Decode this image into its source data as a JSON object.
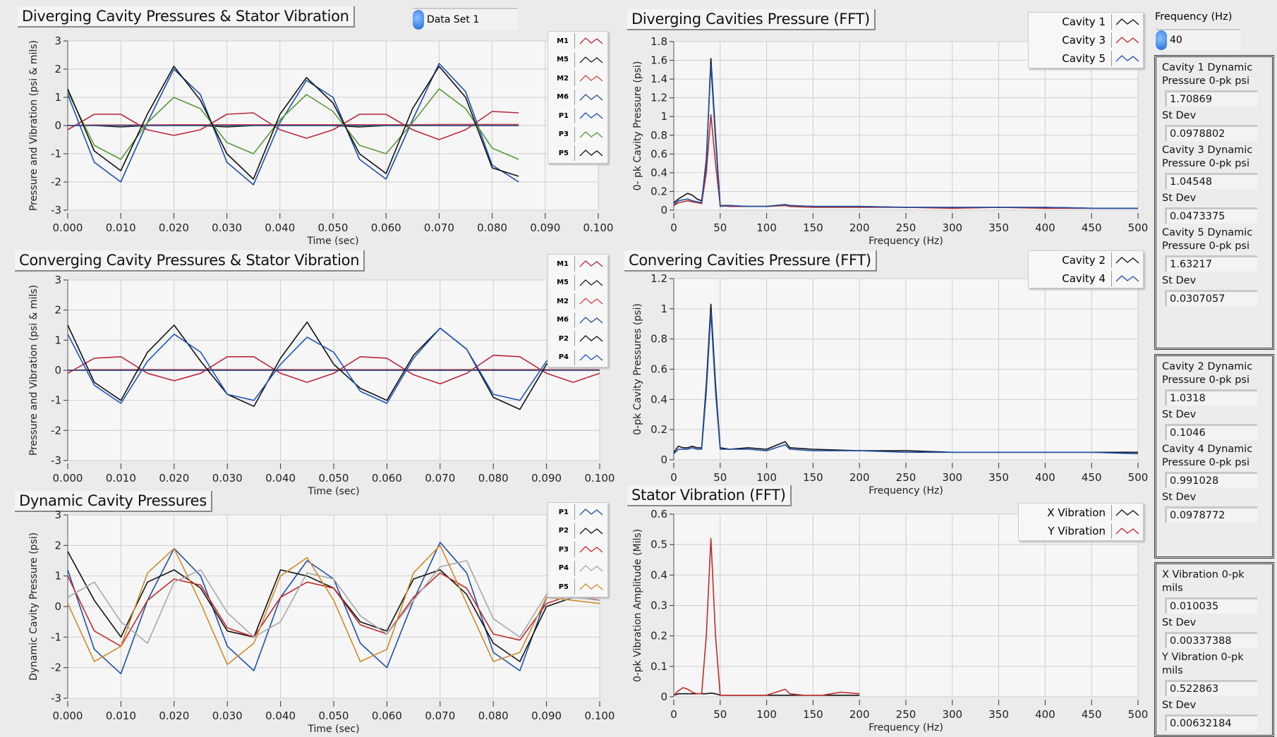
{
  "dataset_ring": {
    "value": "Data Set 1"
  },
  "frequency_control": {
    "label": "Frequency (Hz)",
    "value": "40"
  },
  "indicators": {
    "group1": [
      {
        "label": "Cavity 1 Dynamic Pressure 0-pk psi",
        "value": "1.70869"
      },
      {
        "label": "St Dev",
        "value": "0.0978802"
      },
      {
        "label": "Cavity 3 Dynamic Pressure 0-pk psi",
        "value": "1.04548"
      },
      {
        "label": "St Dev",
        "value": "0.0473375"
      },
      {
        "label": "Cavity 5 Dynamic Pressure 0-pk psi",
        "value": "1.63217"
      },
      {
        "label": "St Dev",
        "value": "0.0307057"
      }
    ],
    "group2": [
      {
        "label": "Cavity 2 Dynamic Pressure 0-pk psi",
        "value": "1.0318"
      },
      {
        "label": "St Dev",
        "value": "0.1046"
      },
      {
        "label": "Cavity 4 Dynamic Pressure 0-pk psi",
        "value": "0.991028"
      },
      {
        "label": "St Dev",
        "value": "0.0978772"
      }
    ],
    "group3": [
      {
        "label": "X Vibration 0-pk mils",
        "value": "0.010035"
      },
      {
        "label": "St Dev",
        "value": "0.00337388"
      },
      {
        "label": "Y Vibration 0-pk mils",
        "value": "0.522863"
      },
      {
        "label": "St Dev",
        "value": "0.00632184"
      }
    ]
  },
  "chart_data": [
    {
      "type": "line",
      "title": "Diverging Cavity Pressures  & Stator Vibration",
      "xlabel": "Time (sec)",
      "ylabel": "Pressure and Vibration (psi & mils)",
      "xlim": [
        0,
        0.1
      ],
      "ylim": [
        -3,
        3
      ],
      "grid": true,
      "legend": "top-right",
      "xticks": [
        "0.000",
        "0.010",
        "0.020",
        "0.030",
        "0.040",
        "0.050",
        "0.060",
        "0.070",
        "0.080",
        "0.090",
        "0.100"
      ],
      "yticks": [
        "-3",
        "-2",
        "-1",
        "0",
        "1",
        "2",
        "3"
      ],
      "x": [
        0,
        0.005,
        0.01,
        0.015,
        0.02,
        0.025,
        0.03,
        0.035,
        0.04,
        0.045,
        0.05,
        0.055,
        0.06,
        0.065,
        0.07,
        0.075,
        0.08,
        0.085
      ],
      "series": [
        {
          "name": "M1",
          "color": "#b8283a",
          "values": [
            -0.15,
            0.4,
            0.4,
            -0.15,
            -0.35,
            -0.15,
            0.4,
            0.45,
            -0.15,
            -0.45,
            -0.15,
            0.4,
            0.4,
            -0.15,
            -0.5,
            -0.15,
            0.5,
            0.45
          ]
        },
        {
          "name": "M5",
          "color": "#222222",
          "values": [
            0,
            0,
            -0.05,
            0,
            0,
            0,
            -0.05,
            0,
            0,
            0,
            0,
            -0.05,
            0,
            0,
            0,
            0,
            0,
            0
          ]
        },
        {
          "name": "M2",
          "color": "#d04848",
          "values": [
            0,
            0.02,
            0.02,
            0.02,
            0.03,
            0.03,
            0.03,
            0.03,
            0.03,
            0.03,
            0.03,
            0.03,
            0.03,
            0.03,
            0.04,
            0.04,
            0.04,
            0.04
          ]
        },
        {
          "name": "M6",
          "color": "#2a4c8e",
          "values": [
            0,
            0,
            0,
            0,
            0,
            0,
            0,
            0,
            0,
            0,
            0,
            0,
            0,
            0,
            0,
            0,
            0,
            0
          ]
        },
        {
          "name": "P1",
          "color": "#1f4fa8",
          "values": [
            1.1,
            -1.3,
            -2.0,
            0.1,
            2.0,
            1.1,
            -1.3,
            -2.1,
            0.1,
            1.6,
            1.0,
            -1.2,
            -1.9,
            0.2,
            2.2,
            1.2,
            -1.4,
            -2.0
          ]
        },
        {
          "name": "P3",
          "color": "#5a9a3a",
          "values": [
            1.2,
            -0.7,
            -1.2,
            0.1,
            1.0,
            0.6,
            -0.6,
            -1.0,
            0.2,
            1.1,
            0.5,
            -0.7,
            -1.0,
            0.1,
            1.3,
            0.6,
            -0.8,
            -1.2
          ]
        },
        {
          "name": "P5",
          "color": "#111111",
          "values": [
            1.3,
            -0.9,
            -1.6,
            0.4,
            2.1,
            0.9,
            -1.0,
            -1.9,
            0.4,
            1.7,
            0.8,
            -1.0,
            -1.7,
            0.6,
            2.1,
            1.0,
            -1.5,
            -1.8
          ]
        }
      ]
    },
    {
      "type": "line",
      "title": "Converging  Cavity Pressures  & Stator Vibration",
      "xlabel": "Time (sec)",
      "ylabel": "Pressure and Vibration (psi & mils)",
      "xlim": [
        0,
        0.1
      ],
      "ylim": [
        -3,
        3
      ],
      "grid": true,
      "legend": "top-right",
      "xticks": [
        "0.000",
        "0.010",
        "0.020",
        "0.030",
        "0.040",
        "0.050",
        "0.060",
        "0.070",
        "0.080",
        "0.090",
        "0.100"
      ],
      "yticks": [
        "-3",
        "-2",
        "-1",
        "0",
        "1",
        "2",
        "3"
      ],
      "x": [
        0,
        0.005,
        0.01,
        0.015,
        0.02,
        0.025,
        0.03,
        0.035,
        0.04,
        0.045,
        0.05,
        0.055,
        0.06,
        0.065,
        0.07,
        0.075,
        0.08,
        0.085,
        0.09,
        0.095,
        0.1
      ],
      "series": [
        {
          "name": "M1",
          "color": "#b8283a",
          "values": [
            -0.1,
            0.4,
            0.45,
            -0.1,
            -0.35,
            -0.1,
            0.45,
            0.45,
            -0.1,
            -0.4,
            -0.1,
            0.45,
            0.4,
            -0.15,
            -0.45,
            -0.1,
            0.5,
            0.45,
            -0.1,
            -0.4,
            -0.1
          ]
        },
        {
          "name": "M5",
          "color": "#222222",
          "values": [
            0,
            0,
            0,
            0,
            0,
            0,
            0,
            0,
            0,
            0,
            0,
            0,
            0,
            0,
            0,
            0,
            0,
            0,
            0,
            0,
            0
          ]
        },
        {
          "name": "M2",
          "color": "#d04848",
          "values": [
            0,
            0.02,
            0.02,
            0.02,
            0.02,
            0.02,
            0.02,
            0.02,
            0.02,
            0.02,
            0.02,
            0.02,
            0.02,
            0.02,
            0.02,
            0.02,
            0.02,
            0.02,
            0.02,
            0.02,
            0.02
          ]
        },
        {
          "name": "M6",
          "color": "#2a4c8e",
          "values": [
            0,
            0,
            0,
            0,
            0,
            0,
            0,
            0,
            0,
            0,
            0,
            0,
            0,
            0,
            0,
            0,
            0,
            0,
            0,
            0,
            0
          ]
        },
        {
          "name": "P2",
          "color": "#111111",
          "values": [
            1.5,
            -0.4,
            -1.0,
            0.6,
            1.5,
            0.3,
            -0.8,
            -1.2,
            0.4,
            1.6,
            0.2,
            -0.6,
            -1.0,
            0.5,
            1.4,
            0.7,
            -0.9,
            -1.3,
            0.2,
            0.6,
            0.1
          ]
        },
        {
          "name": "P4",
          "color": "#1f56b8",
          "values": [
            1.2,
            -0.5,
            -1.1,
            0.3,
            1.2,
            0.6,
            -0.8,
            -1.0,
            0.2,
            1.1,
            0.6,
            -0.7,
            -1.1,
            0.4,
            1.4,
            0.7,
            -0.8,
            -1.0,
            0.3,
            0.5,
            0.2
          ]
        }
      ]
    },
    {
      "type": "line",
      "title": "Dynamic Cavity  Pressures",
      "xlabel": "Time (sec)",
      "ylabel": "Dynamic Cavity  Pressure (psi)",
      "xlim": [
        0,
        0.1
      ],
      "ylim": [
        -3,
        3
      ],
      "grid": true,
      "legend": "top-right",
      "xticks": [
        "0.000",
        "0.010",
        "0.020",
        "0.030",
        "0.040",
        "0.050",
        "0.060",
        "0.070",
        "0.080",
        "0.090",
        "0.100"
      ],
      "yticks": [
        "-3",
        "-2",
        "-1",
        "0",
        "1",
        "2",
        "3"
      ],
      "x": [
        0,
        0.005,
        0.01,
        0.015,
        0.02,
        0.025,
        0.03,
        0.035,
        0.04,
        0.045,
        0.05,
        0.055,
        0.06,
        0.065,
        0.07,
        0.075,
        0.08,
        0.085,
        0.09,
        0.095,
        0.1
      ],
      "series": [
        {
          "name": "P1",
          "color": "#1f4fa8",
          "values": [
            1.2,
            -1.4,
            -2.2,
            0.2,
            1.9,
            1.0,
            -1.3,
            -2.1,
            0.3,
            1.5,
            0.9,
            -1.2,
            -2.0,
            0.2,
            2.1,
            1.1,
            -1.5,
            -2.1,
            0.3,
            0.5,
            0.3
          ]
        },
        {
          "name": "P2",
          "color": "#111111",
          "values": [
            1.8,
            0.2,
            -1.0,
            0.8,
            1.2,
            0.6,
            -0.8,
            -1.0,
            1.2,
            1.0,
            0.6,
            -0.5,
            -0.8,
            0.9,
            1.2,
            0.4,
            -1.2,
            -1.8,
            0.0,
            0.3,
            0.3
          ]
        },
        {
          "name": "P3",
          "color": "#c02a2a",
          "values": [
            1.0,
            -0.8,
            -1.3,
            0.2,
            0.9,
            0.7,
            -0.7,
            -1.0,
            0.3,
            0.8,
            0.6,
            -0.6,
            -0.9,
            0.3,
            1.1,
            0.6,
            -0.9,
            -1.1,
            0.1,
            0.4,
            0.2
          ]
        },
        {
          "name": "P4",
          "color": "#a8a8a8",
          "values": [
            0.3,
            0.8,
            -0.5,
            -1.2,
            0.8,
            1.2,
            -0.2,
            -1.0,
            -0.5,
            1.1,
            0.9,
            -0.3,
            -0.9,
            0.2,
            1.3,
            1.5,
            -0.4,
            -1.0,
            0.4,
            0.3,
            0.2
          ]
        },
        {
          "name": "P5",
          "color": "#d08a2a",
          "values": [
            0.1,
            -1.8,
            -1.3,
            1.1,
            1.9,
            0.1,
            -1.9,
            -1.2,
            1.0,
            1.6,
            0.2,
            -1.8,
            -1.4,
            1.1,
            2.0,
            0.1,
            -1.8,
            -1.5,
            0.3,
            0.2,
            0.1
          ]
        }
      ]
    },
    {
      "type": "line",
      "title": "Diverging Cavities Pressure  (FFT)",
      "xlabel": "Frequency (Hz)",
      "ylabel": "0- pk Cavity Pressure (psi)",
      "xlim": [
        0,
        500
      ],
      "ylim": [
        0,
        1.8
      ],
      "grid": true,
      "legend": "top-right",
      "xticks": [
        "0",
        "50",
        "100",
        "150",
        "200",
        "250",
        "300",
        "350",
        "400",
        "450",
        "500"
      ],
      "yticks": [
        "0",
        "0.2",
        "0.4",
        "0.6",
        "0.8",
        "1",
        "1.2",
        "1.4",
        "1.6",
        "1.8"
      ],
      "x": [
        0,
        5,
        10,
        15,
        20,
        25,
        30,
        35,
        40,
        45,
        50,
        60,
        80,
        100,
        120,
        125,
        150,
        200,
        250,
        300,
        350,
        400,
        450,
        500
      ],
      "series": [
        {
          "name": "Cavity 1",
          "color": "#111111",
          "values": [
            0.08,
            0.12,
            0.15,
            0.18,
            0.16,
            0.12,
            0.1,
            0.5,
            1.62,
            0.8,
            0.05,
            0.05,
            0.04,
            0.04,
            0.06,
            0.05,
            0.04,
            0.04,
            0.03,
            0.03,
            0.03,
            0.03,
            0.02,
            0.02
          ]
        },
        {
          "name": "Cavity 3",
          "color": "#c02a2a",
          "values": [
            0.05,
            0.08,
            0.09,
            0.1,
            0.09,
            0.08,
            0.07,
            0.4,
            1.02,
            0.5,
            0.05,
            0.04,
            0.04,
            0.04,
            0.05,
            0.04,
            0.03,
            0.03,
            0.03,
            0.02,
            0.03,
            0.02,
            0.02,
            0.02
          ]
        },
        {
          "name": "Cavity 5",
          "color": "#1f4fa8",
          "values": [
            0.06,
            0.1,
            0.11,
            0.12,
            0.1,
            0.09,
            0.08,
            0.55,
            1.55,
            0.75,
            0.04,
            0.05,
            0.04,
            0.04,
            0.06,
            0.05,
            0.04,
            0.04,
            0.03,
            0.03,
            0.03,
            0.03,
            0.02,
            0.02
          ]
        }
      ]
    },
    {
      "type": "line",
      "title": "Convering Cavities Pressure (FFT)",
      "xlabel": "Frequency (Hz)",
      "ylabel": "0-pk Cavity Pressures (psi)",
      "xlim": [
        0,
        500
      ],
      "ylim": [
        0,
        1.2
      ],
      "grid": true,
      "legend": "top-right",
      "xticks": [
        "0",
        "50",
        "100",
        "150",
        "200",
        "250",
        "300",
        "350",
        "400",
        "450",
        "500"
      ],
      "yticks": [
        "0",
        "0.2",
        "0.4",
        "0.6",
        "0.8",
        "1",
        "1.2"
      ],
      "x": [
        0,
        5,
        10,
        15,
        20,
        25,
        30,
        35,
        40,
        45,
        50,
        60,
        80,
        100,
        120,
        125,
        150,
        200,
        250,
        300,
        350,
        400,
        450,
        500
      ],
      "series": [
        {
          "name": "Cavity 2",
          "color": "#111111",
          "values": [
            0.05,
            0.09,
            0.08,
            0.08,
            0.09,
            0.08,
            0.08,
            0.5,
            1.03,
            0.5,
            0.08,
            0.07,
            0.08,
            0.07,
            0.12,
            0.08,
            0.07,
            0.06,
            0.06,
            0.05,
            0.05,
            0.05,
            0.05,
            0.05
          ]
        },
        {
          "name": "Cavity 4",
          "color": "#1f4fa8",
          "values": [
            0.04,
            0.07,
            0.07,
            0.07,
            0.08,
            0.07,
            0.07,
            0.45,
            0.98,
            0.45,
            0.07,
            0.07,
            0.07,
            0.06,
            0.1,
            0.07,
            0.06,
            0.06,
            0.05,
            0.05,
            0.05,
            0.05,
            0.05,
            0.04
          ]
        }
      ]
    },
    {
      "type": "line",
      "title": "Stator Vibration  (FFT)",
      "xlabel": "Frequency (Hz)",
      "ylabel": "0-pk Vibration Amplitude (Mils)",
      "xlim": [
        0,
        500
      ],
      "ylim": [
        0,
        0.6
      ],
      "grid": true,
      "legend": "top-right",
      "xticks": [
        "0",
        "50",
        "100",
        "150",
        "200",
        "250",
        "300",
        "350",
        "400",
        "450",
        "500"
      ],
      "yticks": [
        "0",
        "0.1",
        "0.2",
        "0.3",
        "0.4",
        "0.5",
        "0.6"
      ],
      "x": [
        0,
        5,
        10,
        15,
        20,
        25,
        30,
        35,
        40,
        45,
        50,
        60,
        80,
        100,
        120,
        125,
        140,
        160,
        180,
        200
      ],
      "series": [
        {
          "name": "X Vibration",
          "color": "#111111",
          "values": [
            0.005,
            0.01,
            0.01,
            0.01,
            0.01,
            0.01,
            0.01,
            0.01,
            0.012,
            0.01,
            0.005,
            0.005,
            0.005,
            0.005,
            0.005,
            0.005,
            0.005,
            0.005,
            0.005,
            0.005
          ]
        },
        {
          "name": "Y Vibration",
          "color": "#c02a2a",
          "values": [
            0.005,
            0.02,
            0.03,
            0.025,
            0.015,
            0.01,
            0.01,
            0.2,
            0.52,
            0.2,
            0.005,
            0.005,
            0.005,
            0.005,
            0.025,
            0.01,
            0.005,
            0.005,
            0.015,
            0.01
          ]
        }
      ]
    }
  ]
}
